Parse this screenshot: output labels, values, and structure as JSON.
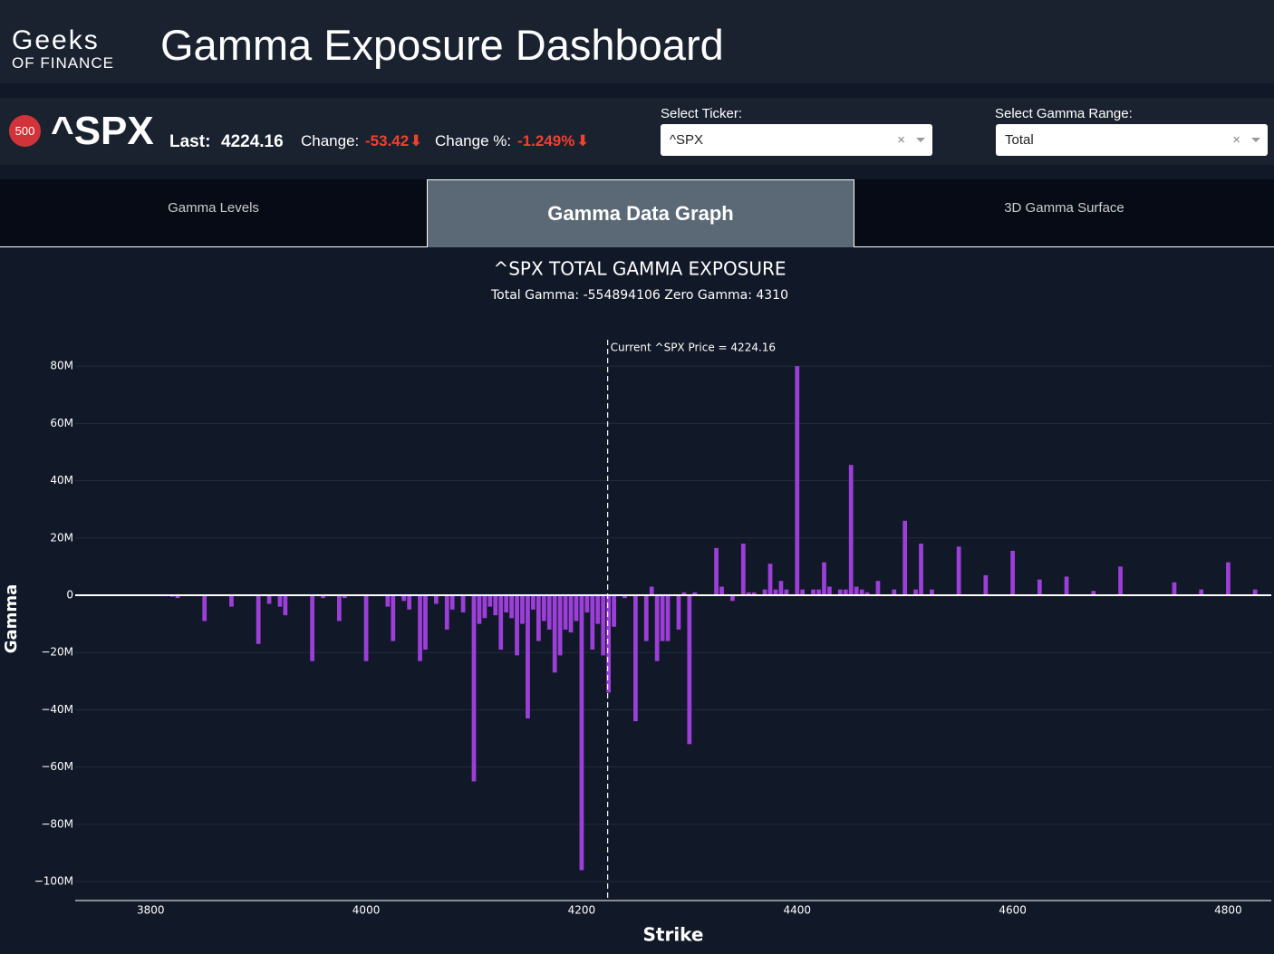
{
  "header": {
    "logo_top": "Geeks",
    "logo_bottom": "OF FINANCE",
    "title": "Gamma Exposure Dashboard"
  },
  "quote": {
    "badge": "500",
    "ticker": "^SPX",
    "last_label": "Last:",
    "last": "4224.16",
    "change_label": "Change:",
    "change": "-53.42",
    "change_pct_label": "Change %:",
    "change_pct": "-1.249%"
  },
  "selects": [
    {
      "label": "Select Ticker:",
      "value": "^SPX"
    },
    {
      "label": "Select Gamma Range:",
      "value": "Total"
    }
  ],
  "tabs": [
    "Gamma Levels",
    "Gamma Data Graph",
    "3D Gamma Surface"
  ],
  "chart_data": {
    "type": "bar",
    "title": "^SPX TOTAL GAMMA EXPOSURE",
    "subtitle": "Total Gamma: -554894106 Zero Gamma: 4310",
    "x_label": "Strike",
    "y_label": "Gamma",
    "color": "#9b3fd8",
    "grid": true,
    "annotation": "Current ^SPX Price = 4224.16",
    "price_line": 4224.16,
    "xlim": [
      3730,
      4840
    ],
    "xticks": [
      3800,
      4000,
      4200,
      4400,
      4600,
      4800
    ],
    "ylim": [
      -106600000,
      89200000
    ],
    "yticks": [
      {
        "value": 80000000,
        "label": "80M"
      },
      {
        "value": 60000000,
        "label": "60M"
      },
      {
        "value": 40000000,
        "label": "40M"
      },
      {
        "value": 20000000,
        "label": "20M"
      },
      0,
      {
        "value": -20000000,
        "label": "−20M"
      },
      {
        "value": -40000000,
        "label": "−40M"
      },
      {
        "value": -60000000,
        "label": "−60M"
      },
      {
        "value": -80000000,
        "label": "−80M"
      },
      {
        "value": -100000000,
        "label": "−100M"
      }
    ],
    "x": [
      3820,
      3825,
      3850,
      3875,
      3900,
      3910,
      3920,
      3925,
      3950,
      3960,
      3975,
      3980,
      4000,
      4020,
      4025,
      4035,
      4040,
      4050,
      4055,
      4065,
      4075,
      4080,
      4090,
      4100,
      4105,
      4110,
      4115,
      4120,
      4125,
      4130,
      4135,
      4140,
      4145,
      4150,
      4155,
      4160,
      4165,
      4170,
      4175,
      4180,
      4185,
      4190,
      4195,
      4200,
      4205,
      4210,
      4215,
      4220,
      4225,
      4230,
      4240,
      4250,
      4260,
      4265,
      4270,
      4275,
      4280,
      4290,
      4295,
      4300,
      4305,
      4325,
      4330,
      4340,
      4350,
      4355,
      4360,
      4370,
      4375,
      4380,
      4385,
      4390,
      4400,
      4405,
      4415,
      4420,
      4425,
      4430,
      4440,
      4445,
      4450,
      4455,
      4460,
      4465,
      4475,
      4490,
      4500,
      4510,
      4515,
      4525,
      4550,
      4575,
      4600,
      4625,
      4650,
      4675,
      4700,
      4750,
      4775,
      4800,
      4825
    ],
    "values": [
      -500000,
      -1000000,
      -9000000,
      -4000000,
      -17000000,
      -3000000,
      -4000000,
      -7000000,
      -23000000,
      -1000000,
      -9000000,
      -1000000,
      -23000000,
      -4000000,
      -16000000,
      -2000000,
      -5000000,
      -23000000,
      -19000000,
      -3000000,
      -12000000,
      -5000000,
      -6000000,
      -65000000,
      -10000000,
      -8000000,
      -4000000,
      -7000000,
      -19000000,
      -6000000,
      -8000000,
      -21000000,
      -10000000,
      -43000000,
      -5000000,
      -16000000,
      -9000000,
      -12000000,
      -27000000,
      -21000000,
      -12000000,
      -13000000,
      -9000000,
      -96000000,
      -6000000,
      -19000000,
      -10000000,
      -21000000,
      -34000000,
      -11000000,
      -1000000,
      -44000000,
      -16000000,
      3000000,
      -23000000,
      -16000000,
      -16000000,
      -12000000,
      1000000,
      -52000000,
      1000000,
      16500000,
      3000000,
      -2000000,
      18000000,
      1000000,
      1000000,
      2000000,
      11000000,
      2000000,
      5000000,
      2000000,
      80000000,
      2000000,
      2000000,
      2000000,
      11500000,
      3000000,
      2000000,
      2000000,
      45500000,
      3000000,
      2000000,
      1000000,
      5000000,
      2000000,
      26000000,
      2000000,
      18000000,
      2000000,
      17000000,
      7000000,
      15500000,
      5500000,
      6500000,
      1500000,
      10000000,
      4500000,
      2000000,
      11500000,
      2000000
    ]
  }
}
